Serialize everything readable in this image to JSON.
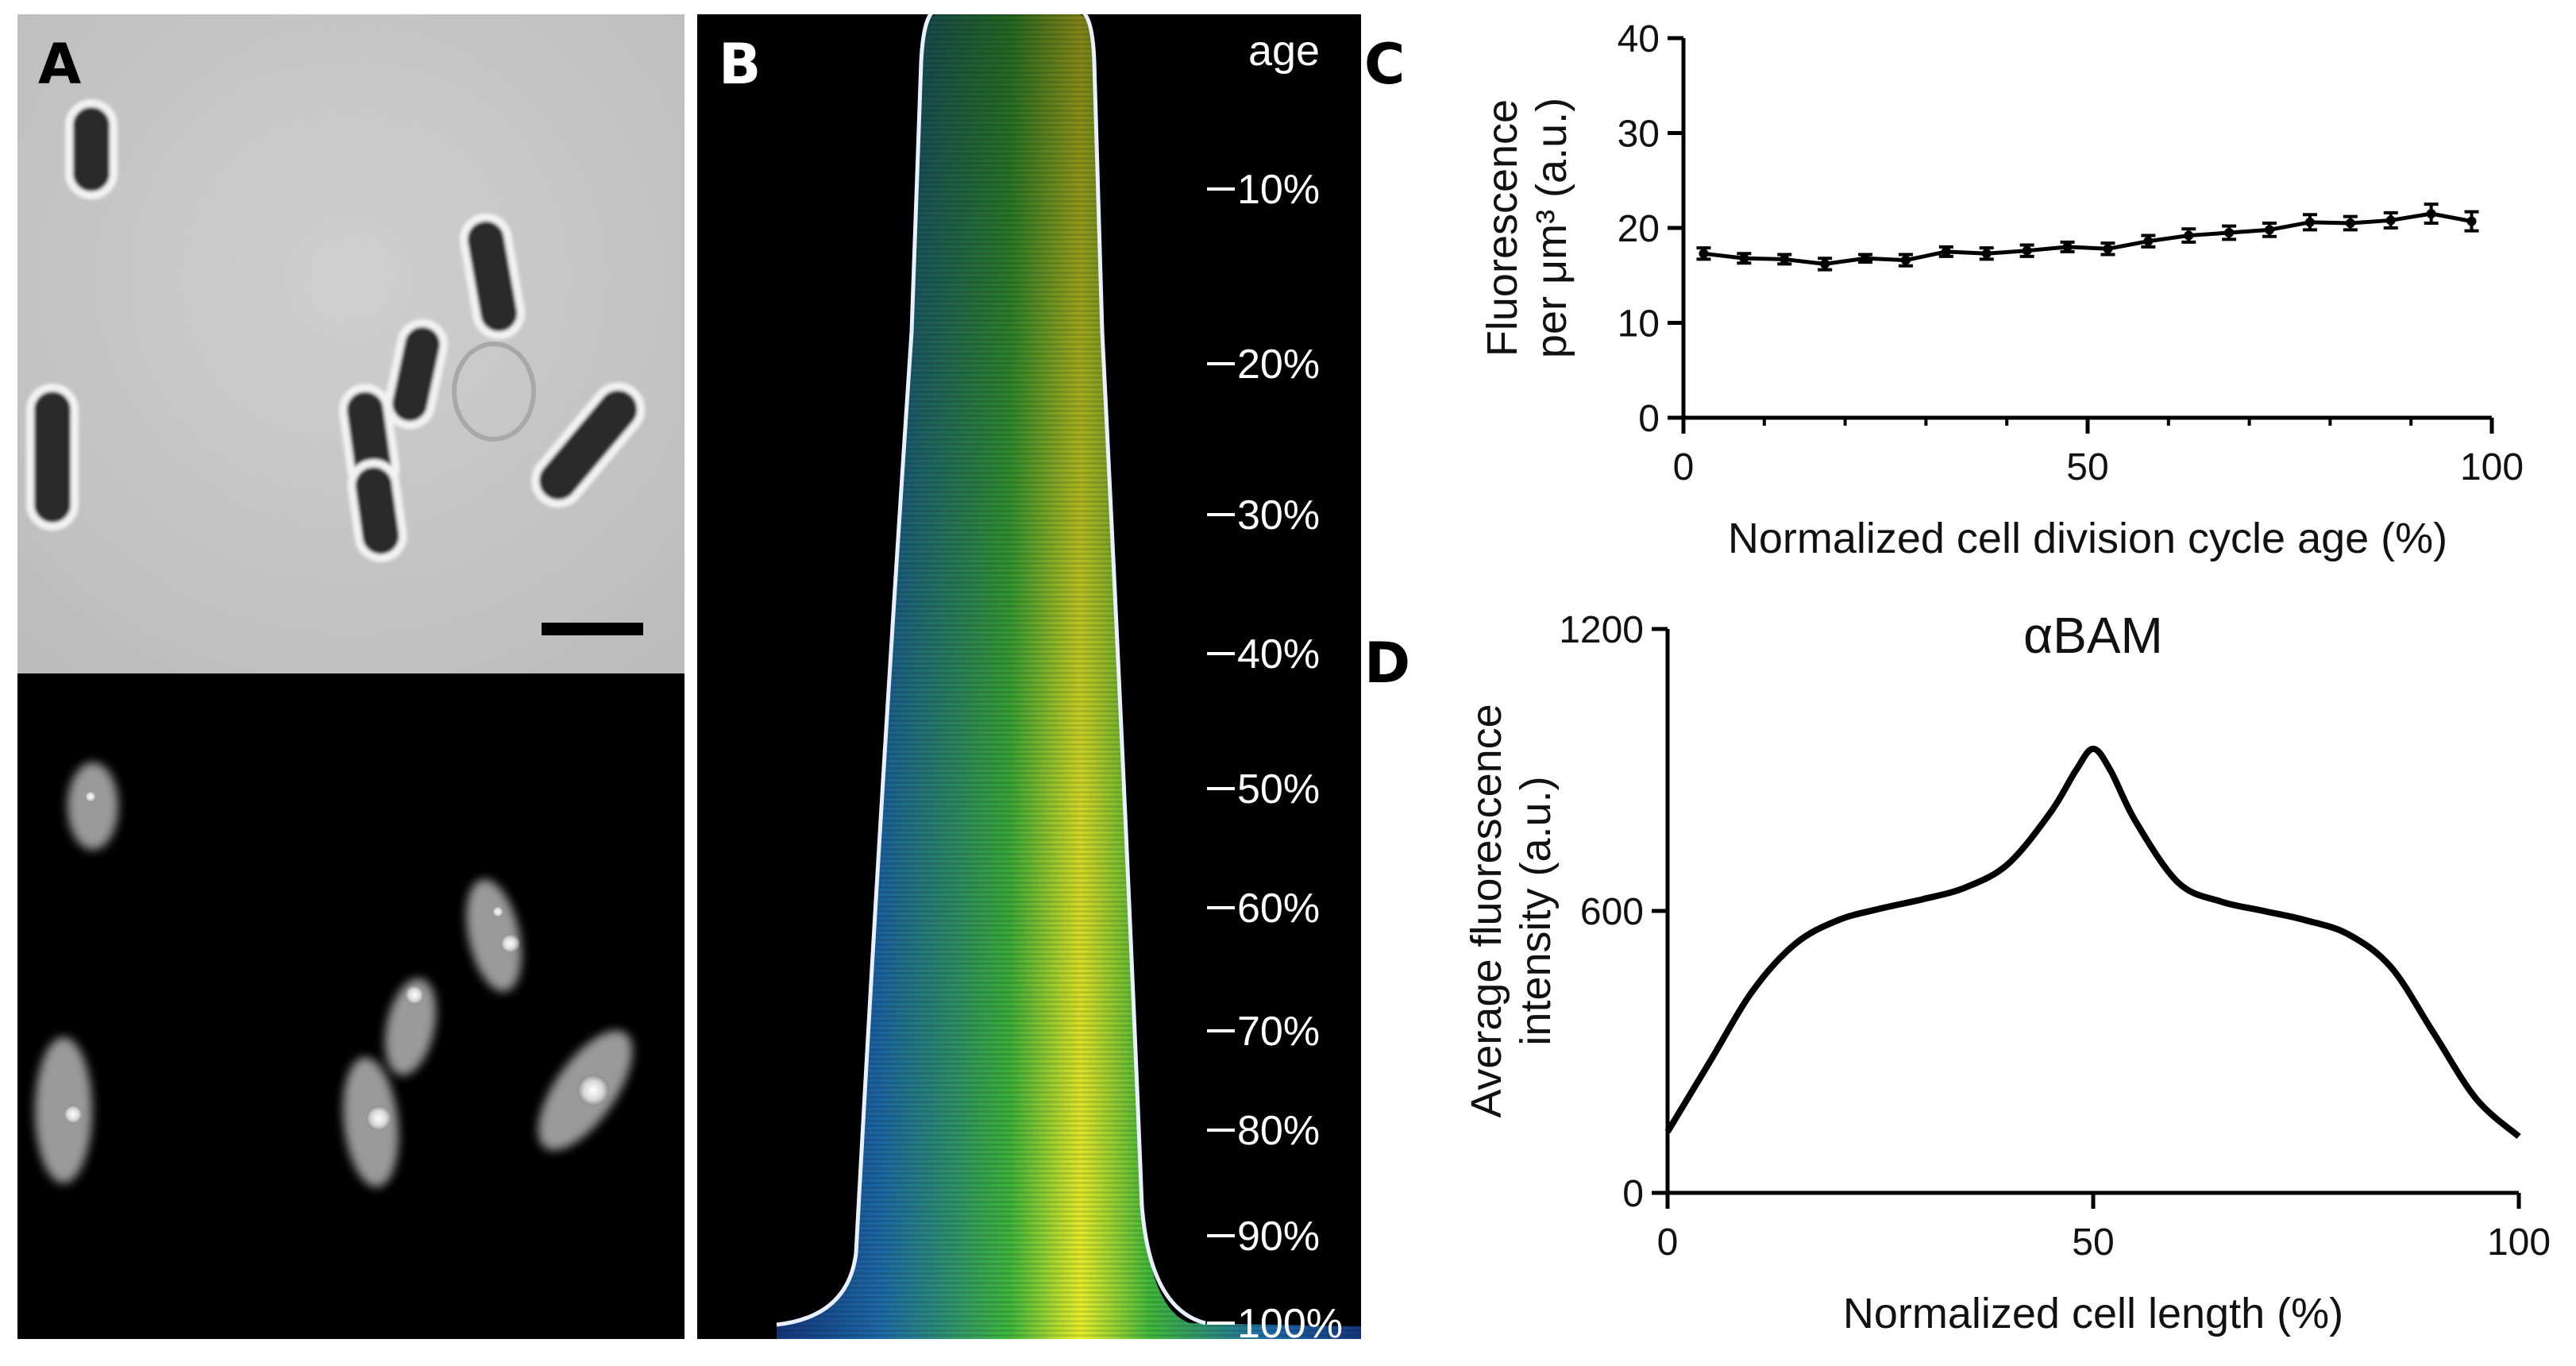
{
  "panels": {
    "A": {
      "label": "A"
    },
    "B": {
      "label": "B",
      "title": "age",
      "age_ticks": [
        "10%",
        "20%",
        "30%",
        "40%",
        "50%",
        "60%",
        "70%",
        "80%",
        "90%",
        "100%"
      ]
    },
    "C": {
      "label": "C"
    },
    "D": {
      "label": "D"
    }
  },
  "chart_data": [
    {
      "panel": "C",
      "type": "line",
      "title": "",
      "xlabel": "Normalized cell division cycle age (%)",
      "ylabel_line1": "Fluorescence",
      "ylabel_line2": "per μm³ (a.u.)",
      "xlim": [
        0,
        100
      ],
      "ylim": [
        0,
        40
      ],
      "xticks": [
        0,
        50,
        100
      ],
      "yticks": [
        0,
        10,
        20,
        30,
        40
      ],
      "series": [
        {
          "x": [
            2.5,
            7.5,
            12.5,
            17.5,
            22.5,
            27.5,
            32.5,
            37.5,
            42.5,
            47.5,
            52.5,
            57.5,
            62.5,
            67.5,
            72.5,
            77.5,
            82.5,
            87.5,
            92.5,
            97.5
          ],
          "y": [
            17.3,
            16.8,
            16.7,
            16.2,
            16.8,
            16.6,
            17.5,
            17.3,
            17.6,
            18.0,
            17.8,
            18.6,
            19.2,
            19.5,
            19.8,
            20.6,
            20.5,
            20.8,
            21.5,
            20.7
          ],
          "err": [
            0.6,
            0.5,
            0.5,
            0.6,
            0.4,
            0.6,
            0.5,
            0.6,
            0.6,
            0.5,
            0.6,
            0.6,
            0.7,
            0.7,
            0.7,
            0.8,
            0.7,
            0.8,
            1.0,
            1.0
          ]
        }
      ]
    },
    {
      "panel": "D",
      "type": "line",
      "title": "αBAM",
      "xlabel": "Normalized cell length (%)",
      "ylabel_line1": "Average fluorescence",
      "ylabel_line2": "intensity (a.u.)",
      "xlim": [
        0,
        100
      ],
      "ylim": [
        0,
        1200
      ],
      "xticks": [
        0,
        50,
        100
      ],
      "yticks": [
        0,
        600,
        1200
      ],
      "series": [
        {
          "x": [
            0,
            5,
            10,
            15,
            20,
            25,
            30,
            35,
            40,
            45,
            48,
            50,
            52,
            55,
            60,
            65,
            70,
            75,
            80,
            85,
            90,
            95,
            100
          ],
          "y": [
            130,
            280,
            430,
            530,
            580,
            605,
            625,
            650,
            700,
            810,
            900,
            945,
            900,
            790,
            660,
            620,
            600,
            580,
            550,
            480,
            340,
            200,
            120
          ]
        }
      ]
    }
  ]
}
